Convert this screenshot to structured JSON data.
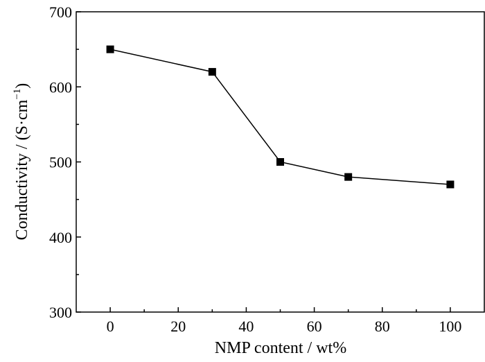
{
  "chart_data": {
    "type": "line",
    "xlabel": "NMP content / wt%",
    "ylabel": {
      "prefix": "Conductivity / (S·cm",
      "exponent": "−1",
      "suffix": ")"
    },
    "xlim": [
      -10,
      110
    ],
    "ylim": [
      300,
      700
    ],
    "x_ticks": [
      0,
      20,
      40,
      60,
      80,
      100
    ],
    "y_ticks": [
      300,
      400,
      500,
      600,
      700
    ],
    "marker": "square",
    "line_color": "#000000",
    "grid": false,
    "series": [
      {
        "x": [
          0,
          30,
          50,
          70,
          100
        ],
        "y": [
          650,
          620,
          500,
          480,
          470
        ]
      }
    ]
  }
}
